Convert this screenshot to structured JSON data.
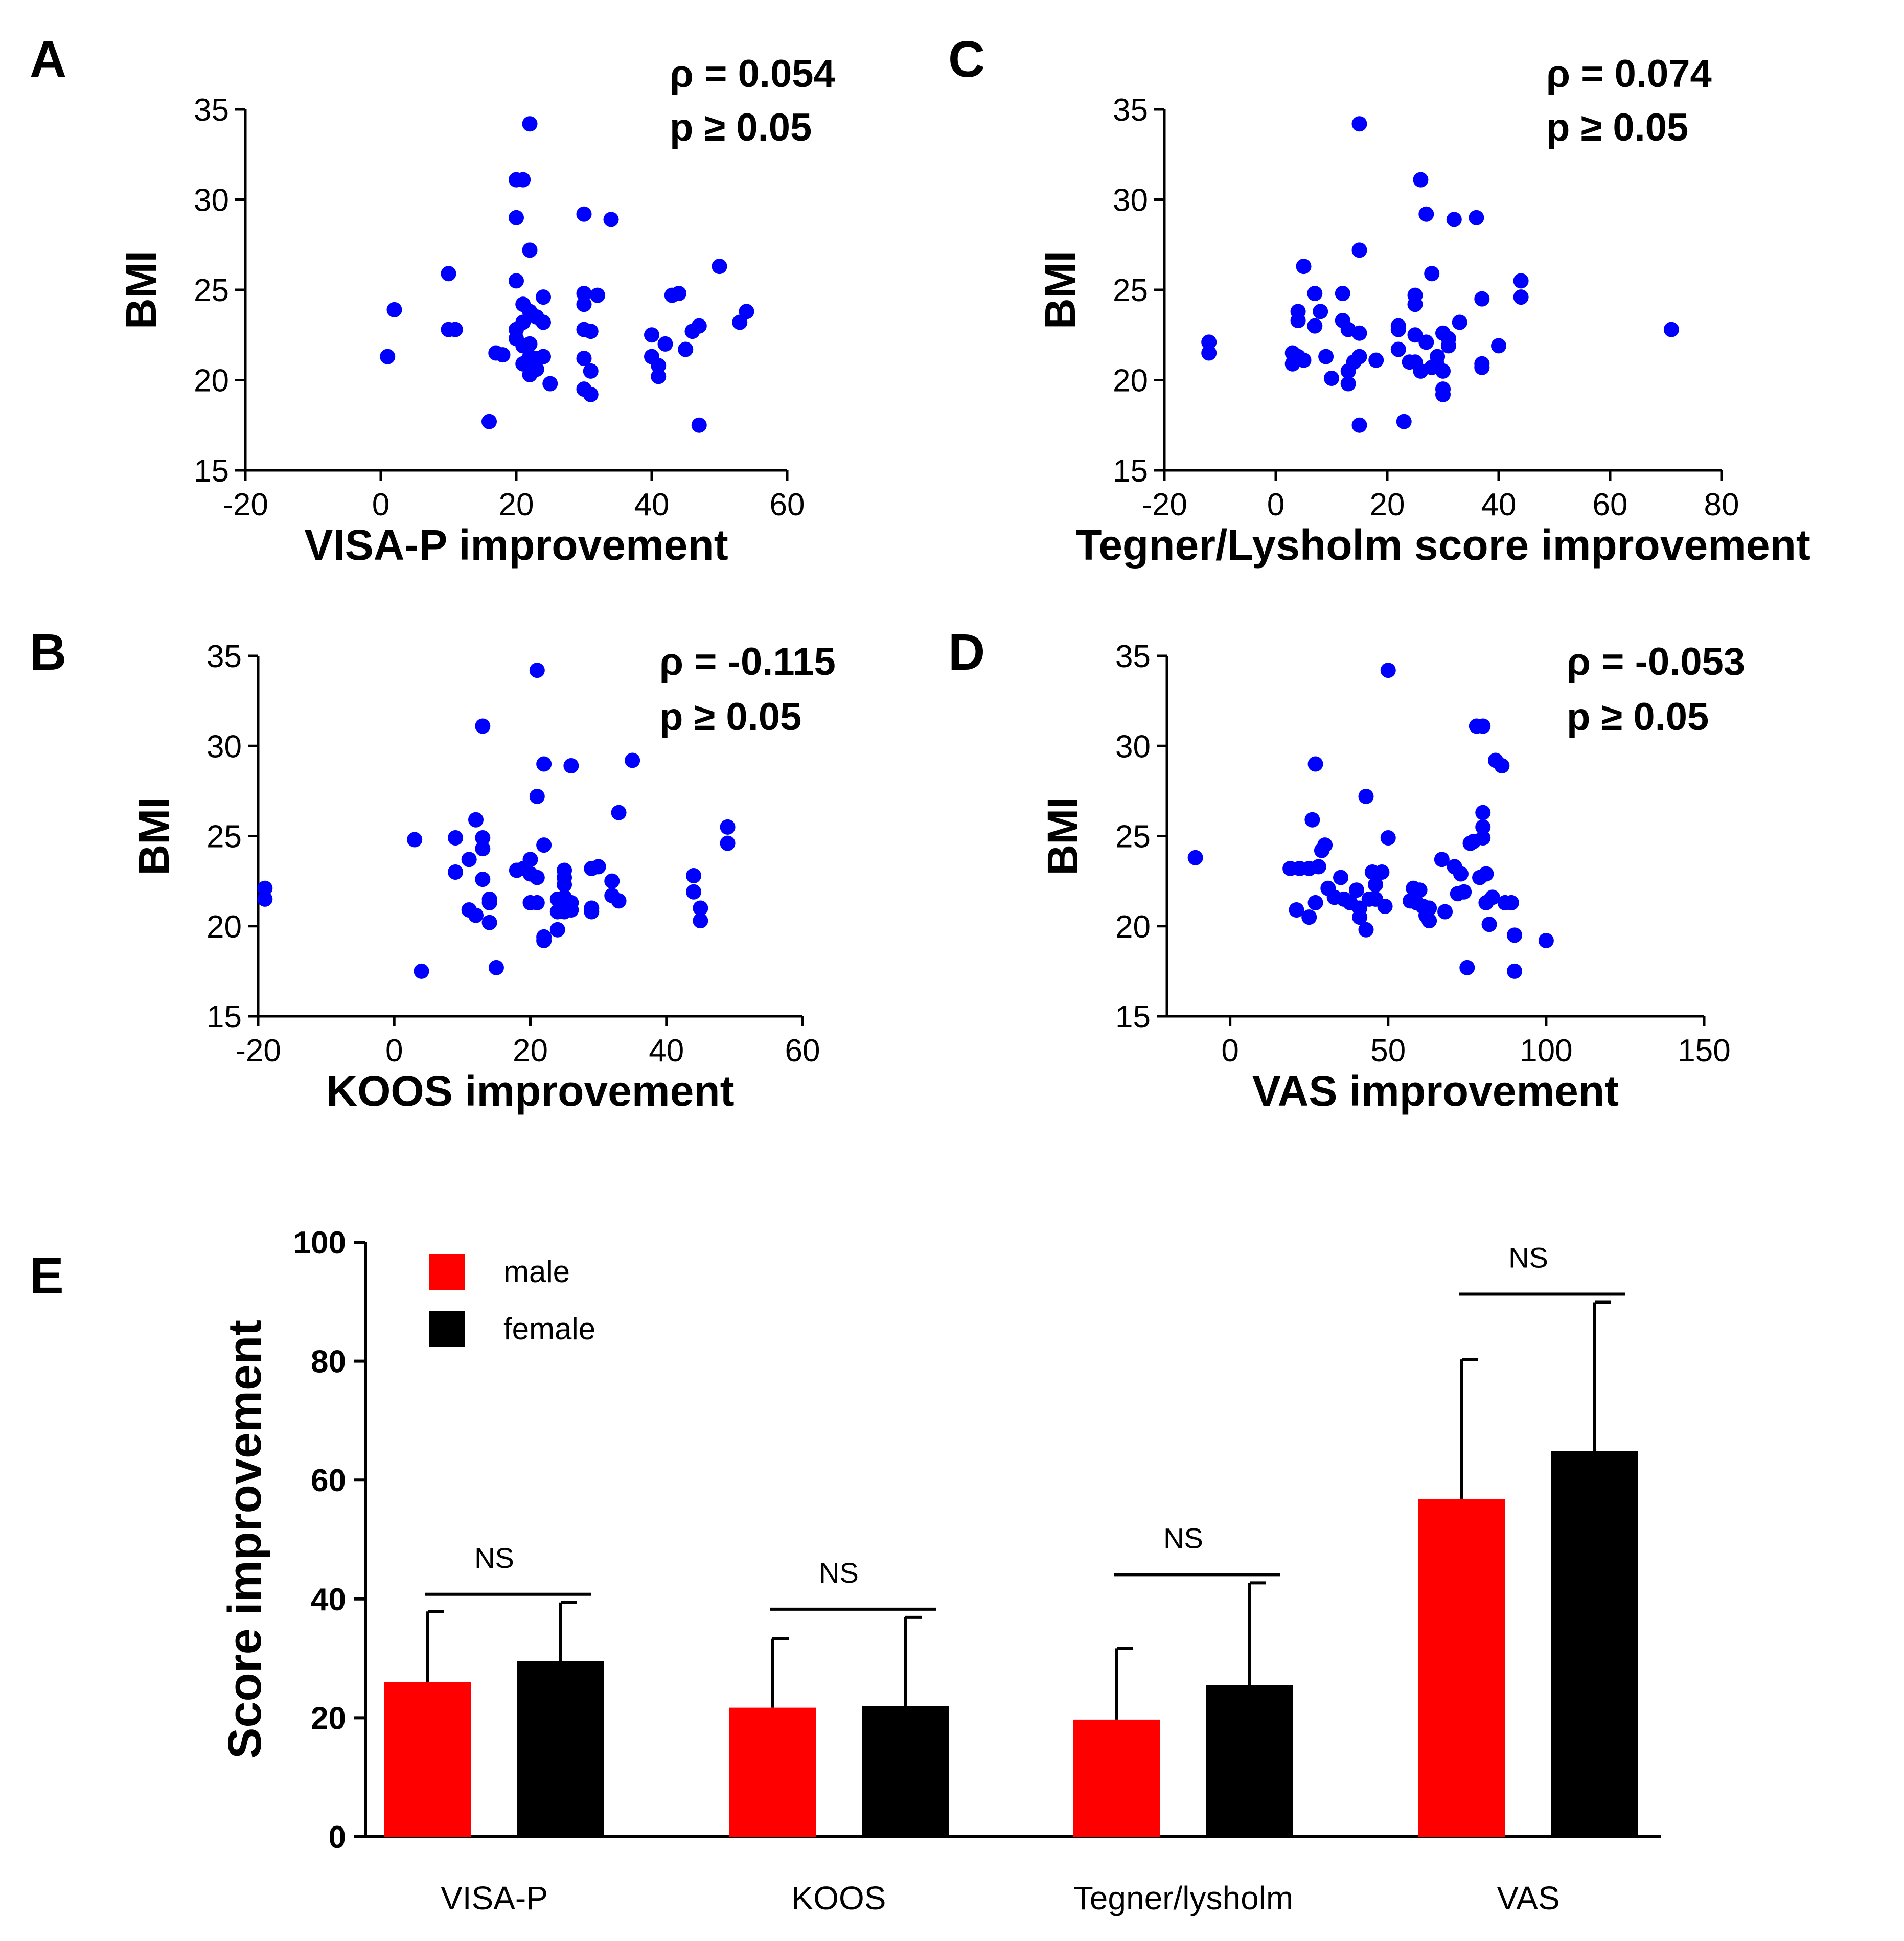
{
  "chart_data": [
    {
      "panel": "A",
      "type": "scatter",
      "xlabel": "VISA-P improvement",
      "ylabel": "BMI",
      "xlim": [
        -20,
        60
      ],
      "xticks": [
        -20,
        0,
        20,
        40,
        60
      ],
      "ylim": [
        15,
        35
      ],
      "yticks": [
        15,
        20,
        25,
        30,
        35
      ],
      "rho": "ρ = 0.054",
      "p": "p ≥ 0.05",
      "color": "#0000ff",
      "points": [
        [
          1,
          21.3
        ],
        [
          2,
          23.9
        ],
        [
          10,
          25.9
        ],
        [
          10,
          22.8
        ],
        [
          11,
          22.8
        ],
        [
          16,
          17.7
        ],
        [
          17,
          21.5
        ],
        [
          18,
          21.4
        ],
        [
          20,
          31.1
        ],
        [
          20,
          29.0
        ],
        [
          20,
          25.5
        ],
        [
          20,
          22.8
        ],
        [
          20,
          22.3
        ],
        [
          21,
          31.1
        ],
        [
          21,
          24.2
        ],
        [
          21,
          23.2
        ],
        [
          21,
          21.9
        ],
        [
          21,
          20.9
        ],
        [
          22,
          34.2
        ],
        [
          22,
          27.2
        ],
        [
          22,
          23.8
        ],
        [
          22,
          22.0
        ],
        [
          22,
          21.3
        ],
        [
          22,
          20.3
        ],
        [
          23,
          23.5
        ],
        [
          23,
          21.2
        ],
        [
          23,
          20.6
        ],
        [
          24,
          24.6
        ],
        [
          24,
          23.2
        ],
        [
          24,
          21.3
        ],
        [
          25,
          19.8
        ],
        [
          30,
          29.2
        ],
        [
          30,
          24.8
        ],
        [
          30,
          24.2
        ],
        [
          30,
          22.8
        ],
        [
          30,
          21.2
        ],
        [
          30,
          19.5
        ],
        [
          31,
          19.2
        ],
        [
          31,
          20.5
        ],
        [
          31,
          22.7
        ],
        [
          32,
          24.7
        ],
        [
          34,
          28.9
        ],
        [
          40,
          22.5
        ],
        [
          40,
          21.3
        ],
        [
          41,
          20.8
        ],
        [
          41,
          20.2
        ],
        [
          42,
          22.0
        ],
        [
          43,
          24.7
        ],
        [
          44,
          24.8
        ],
        [
          45,
          21.7
        ],
        [
          46,
          22.7
        ],
        [
          47,
          23.0
        ],
        [
          47,
          17.5
        ],
        [
          50,
          26.3
        ],
        [
          53,
          23.2
        ],
        [
          54,
          23.8
        ]
      ]
    },
    {
      "panel": "C",
      "type": "scatter",
      "xlabel": "Tegner/Lysholm score improvement",
      "ylabel": "BMI",
      "xlim": [
        -20,
        80
      ],
      "xticks": [
        -20,
        0,
        20,
        40,
        60,
        80
      ],
      "ylim": [
        15,
        35
      ],
      "yticks": [
        15,
        20,
        25,
        30,
        35
      ],
      "rho": "ρ = 0.074",
      "p": "p ≥ 0.05",
      "color": "#0000ff",
      "points": [
        [
          -12,
          22.1
        ],
        [
          -12,
          21.5
        ],
        [
          3,
          21.5
        ],
        [
          3,
          20.9
        ],
        [
          4,
          23.8
        ],
        [
          4,
          23.3
        ],
        [
          4,
          21.3
        ],
        [
          5,
          26.3
        ],
        [
          5,
          21.1
        ],
        [
          7,
          24.8
        ],
        [
          7,
          23.0
        ],
        [
          8,
          23.8
        ],
        [
          9,
          21.3
        ],
        [
          10,
          20.1
        ],
        [
          12,
          24.8
        ],
        [
          12,
          23.3
        ],
        [
          13,
          22.8
        ],
        [
          13,
          20.5
        ],
        [
          13,
          19.8
        ],
        [
          14,
          21.0
        ],
        [
          15,
          34.2
        ],
        [
          15,
          27.2
        ],
        [
          15,
          22.6
        ],
        [
          15,
          21.3
        ],
        [
          15,
          17.5
        ],
        [
          18,
          21.1
        ],
        [
          22,
          23.0
        ],
        [
          22,
          22.8
        ],
        [
          22,
          21.7
        ],
        [
          23,
          17.7
        ],
        [
          24,
          21.0
        ],
        [
          25,
          24.7
        ],
        [
          25,
          24.2
        ],
        [
          25,
          22.5
        ],
        [
          25,
          21.0
        ],
        [
          26,
          31.1
        ],
        [
          26,
          20.5
        ],
        [
          27,
          29.2
        ],
        [
          27,
          22.1
        ],
        [
          28,
          25.9
        ],
        [
          28,
          20.7
        ],
        [
          29,
          21.3
        ],
        [
          29,
          20.8
        ],
        [
          30,
          22.6
        ],
        [
          30,
          20.5
        ],
        [
          30,
          19.5
        ],
        [
          30,
          19.2
        ],
        [
          31,
          22.3
        ],
        [
          31,
          21.9
        ],
        [
          32,
          28.9
        ],
        [
          33,
          23.2
        ],
        [
          36,
          29.0
        ],
        [
          37,
          24.5
        ],
        [
          37,
          20.9
        ],
        [
          37,
          20.7
        ],
        [
          40,
          21.9
        ],
        [
          44,
          25.5
        ],
        [
          44,
          24.6
        ],
        [
          71,
          22.8
        ]
      ]
    },
    {
      "panel": "B",
      "type": "scatter",
      "xlabel": "KOOS improvement",
      "ylabel": "BMI",
      "xlim": [
        -20,
        60
      ],
      "xticks": [
        -20,
        0,
        20,
        40,
        60
      ],
      "ylim": [
        15,
        35
      ],
      "yticks": [
        15,
        20,
        25,
        30,
        35
      ],
      "rho": "ρ = -0.115",
      "p": "p ≥ 0.05",
      "color": "#0000ff",
      "points": [
        [
          -19,
          22.1
        ],
        [
          -19,
          21.5
        ],
        [
          3,
          24.8
        ],
        [
          4,
          17.5
        ],
        [
          9,
          24.9
        ],
        [
          9,
          23.0
        ],
        [
          11,
          23.7
        ],
        [
          11,
          20.9
        ],
        [
          12,
          25.9
        ],
        [
          12,
          20.6
        ],
        [
          13,
          31.1
        ],
        [
          13,
          24.9
        ],
        [
          13,
          24.3
        ],
        [
          13,
          22.6
        ],
        [
          14,
          21.3
        ],
        [
          14,
          20.2
        ],
        [
          14,
          21.5
        ],
        [
          15,
          17.7
        ],
        [
          18,
          23.1
        ],
        [
          19,
          23.2
        ],
        [
          20,
          22.9
        ],
        [
          20,
          23.7
        ],
        [
          20,
          21.3
        ],
        [
          21,
          34.2
        ],
        [
          21,
          27.2
        ],
        [
          21,
          22.7
        ],
        [
          21,
          21.3
        ],
        [
          22,
          29.0
        ],
        [
          22,
          24.5
        ],
        [
          22,
          19.4
        ],
        [
          22,
          19.2
        ],
        [
          24,
          21.5
        ],
        [
          24,
          20.8
        ],
        [
          24,
          19.8
        ],
        [
          25,
          23.1
        ],
        [
          25,
          22.7
        ],
        [
          25,
          22.3
        ],
        [
          25,
          21.6
        ],
        [
          25,
          20.8
        ],
        [
          26,
          28.9
        ],
        [
          26,
          21.3
        ],
        [
          26,
          20.9
        ],
        [
          29,
          23.2
        ],
        [
          29,
          21.0
        ],
        [
          29,
          20.8
        ],
        [
          30,
          23.3
        ],
        [
          32,
          22.5
        ],
        [
          32,
          21.7
        ],
        [
          33,
          26.3
        ],
        [
          33,
          21.4
        ],
        [
          35,
          29.2
        ],
        [
          44,
          22.8
        ],
        [
          44,
          21.9
        ],
        [
          45,
          21.0
        ],
        [
          45,
          20.3
        ],
        [
          49,
          25.5
        ],
        [
          49,
          24.6
        ]
      ]
    },
    {
      "panel": "D",
      "type": "scatter",
      "xlabel": "VAS improvement",
      "ylabel": "BMI",
      "xlim": [
        -20,
        150
      ],
      "xticks": [
        0,
        50,
        100,
        150
      ],
      "ylim": [
        15,
        35
      ],
      "yticks": [
        15,
        20,
        25,
        30,
        35
      ],
      "rho": "ρ = -0.053",
      "p": "p ≥ 0.05",
      "color": "#0000ff",
      "points": [
        [
          -11,
          23.8
        ],
        [
          19,
          23.2
        ],
        [
          21,
          20.9
        ],
        [
          22,
          23.2
        ],
        [
          25,
          23.2
        ],
        [
          25,
          20.5
        ],
        [
          26,
          25.9
        ],
        [
          27,
          29.0
        ],
        [
          27,
          21.3
        ],
        [
          28,
          23.3
        ],
        [
          29,
          24.2
        ],
        [
          30,
          24.5
        ],
        [
          31,
          22.1
        ],
        [
          33,
          21.6
        ],
        [
          35,
          22.7
        ],
        [
          36,
          21.5
        ],
        [
          38,
          21.3
        ],
        [
          40,
          22.0
        ],
        [
          41,
          21.0
        ],
        [
          41,
          20.5
        ],
        [
          43,
          27.2
        ],
        [
          43,
          19.8
        ],
        [
          44,
          21.5
        ],
        [
          45,
          23.0
        ],
        [
          46,
          22.3
        ],
        [
          46,
          21.5
        ],
        [
          48,
          23.0
        ],
        [
          49,
          21.1
        ],
        [
          50,
          34.2
        ],
        [
          50,
          24.9
        ],
        [
          57,
          21.4
        ],
        [
          58,
          22.1
        ],
        [
          59,
          21.3
        ],
        [
          60,
          22.0
        ],
        [
          61,
          21.1
        ],
        [
          62,
          20.6
        ],
        [
          63,
          20.3
        ],
        [
          63,
          21.0
        ],
        [
          67,
          23.7
        ],
        [
          68,
          20.8
        ],
        [
          71,
          23.3
        ],
        [
          72,
          21.8
        ],
        [
          73,
          22.9
        ],
        [
          74,
          21.9
        ],
        [
          75,
          17.7
        ],
        [
          76,
          24.6
        ],
        [
          77,
          24.7
        ],
        [
          78,
          31.1
        ],
        [
          79,
          22.7
        ],
        [
          80,
          31.1
        ],
        [
          80,
          26.3
        ],
        [
          80,
          25.5
        ],
        [
          80,
          24.9
        ],
        [
          81,
          22.9
        ],
        [
          81,
          21.3
        ],
        [
          82,
          20.1
        ],
        [
          83,
          21.6
        ],
        [
          84,
          29.2
        ],
        [
          86,
          28.9
        ],
        [
          87,
          21.3
        ],
        [
          89,
          21.3
        ],
        [
          90,
          19.5
        ],
        [
          90,
          17.5
        ],
        [
          100,
          19.2
        ]
      ]
    },
    {
      "panel": "E",
      "type": "bar",
      "ylabel": "Score improvement",
      "ylim": [
        0,
        100
      ],
      "yticks": [
        0,
        20,
        40,
        60,
        80,
        100
      ],
      "categories": [
        "VISA-P",
        "KOOS",
        "Tegner/lysholm",
        "VAS"
      ],
      "series": [
        {
          "name": "male",
          "color": "#ff0000",
          "values": [
            26.0,
            21.7,
            19.7,
            56.8
          ],
          "errors": [
            11.9,
            11.6,
            12.0,
            23.5
          ]
        },
        {
          "name": "female",
          "color": "#000000",
          "values": [
            29.5,
            22.0,
            25.5,
            64.9
          ],
          "errors": [
            9.9,
            14.9,
            17.2,
            25.0
          ]
        }
      ],
      "significance": [
        "NS",
        "NS",
        "NS",
        "NS"
      ],
      "legend_position": "top-left"
    }
  ]
}
